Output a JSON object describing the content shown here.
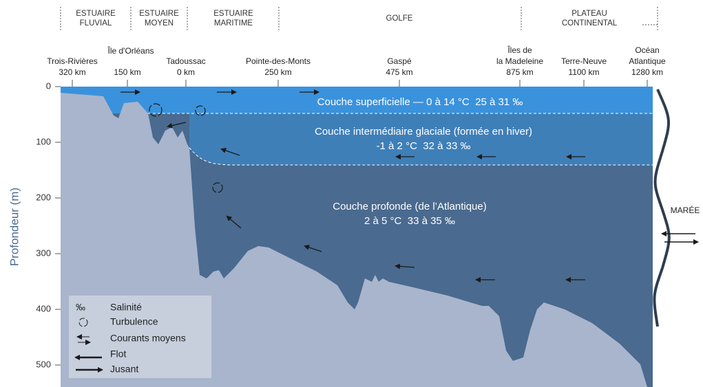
{
  "zones": [
    {
      "lines": [
        "ESTUAIRE",
        "FLUVIAL"
      ]
    },
    {
      "lines": [
        "ESTUAIRE",
        "MOYEN"
      ]
    },
    {
      "lines": [
        "ESTUAIRE",
        "MARITIME"
      ]
    },
    {
      "lines": [
        "GOLFE"
      ]
    },
    {
      "lines": [
        "PLATEAU",
        "CONTINENTAL"
      ]
    }
  ],
  "locations": [
    {
      "lines": [
        "Trois-Rivières",
        "320 km"
      ]
    },
    {
      "lines": [
        "Île d'Orléans",
        "150 km"
      ]
    },
    {
      "lines": [
        "Tadoussac",
        "0 km"
      ]
    },
    {
      "lines": [
        "Pointe-des-Monts",
        "250 km"
      ]
    },
    {
      "lines": [
        "Gaspé",
        "475 km"
      ]
    },
    {
      "lines": [
        "Îles de",
        "la Madeleine",
        "875 km"
      ]
    },
    {
      "lines": [
        "Terre-Neuve",
        "1100 km"
      ]
    },
    {
      "lines": [
        "Océan",
        "Atlantique",
        "1280 km"
      ]
    }
  ],
  "depth_axis": {
    "label": "Profondeur (m)",
    "ticks": [
      0,
      100,
      200,
      300,
      400,
      500
    ]
  },
  "layers": [
    {
      "lines": [
        "Couche superficielle — 0 à 14 °C  25 à 31 ‰"
      ]
    },
    {
      "lines": [
        "Couche intermédiaire glaciale (formée en hiver)",
        "-1 à 2 °C  32 à 33 ‰"
      ]
    },
    {
      "lines": [
        "Couche profonde (de l’Atlantique)",
        "2 à 5 °C  33 à 35 ‰"
      ]
    }
  ],
  "tide": "MARÉE",
  "legend": [
    {
      "symbol": "‰",
      "label": "Salinité"
    },
    {
      "label": "Turbulence"
    },
    {
      "label": "Courants moyens"
    },
    {
      "label": "Flot"
    },
    {
      "label": "Jusant"
    }
  ]
}
